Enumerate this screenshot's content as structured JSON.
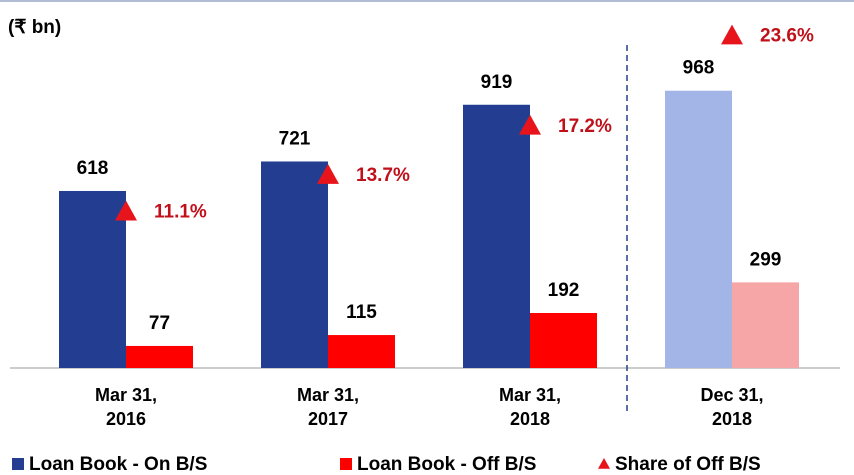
{
  "chart_data": {
    "type": "bar",
    "ylabel": "(₹ bn)",
    "categories": [
      "Mar 31,\n2016",
      "Mar 31,\n2017",
      "Mar 31,\n2018",
      "Dec 31,\n2018"
    ],
    "ylim": [
      0,
      1180
    ],
    "y2lim": [
      0,
      24
    ],
    "series": [
      {
        "name": "Loan Book - On B/S",
        "color": "#233e91",
        "colors": [
          "#233e91",
          "#233e91",
          "#233e91",
          "#a3b4e6"
        ],
        "values": [
          618,
          721,
          919,
          968
        ]
      },
      {
        "name": "Loan Book - Off B/S",
        "color": "#ff0000",
        "colors": [
          "#ff0000",
          "#ff0000",
          "#ff0000",
          "#f7a6a8"
        ],
        "values": [
          77,
          115,
          192,
          299
        ]
      },
      {
        "name": "Share of Off B/S",
        "type": "triangle",
        "axis": "y2",
        "color": "#e8141c",
        "label_color": "#c0101a",
        "values": [
          11.1,
          13.7,
          17.2,
          23.6
        ],
        "value_labels": [
          "11.1%",
          "13.7%",
          "17.2%",
          "23.6%"
        ]
      }
    ]
  }
}
